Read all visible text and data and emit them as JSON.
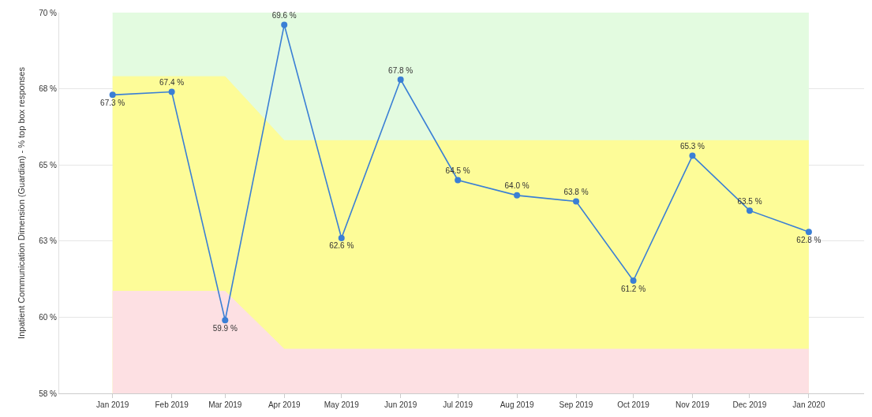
{
  "chart_data": {
    "type": "line",
    "ylabel": "Inpatient Communication Dimension (Guardian) - % top box responses",
    "x": [
      "2019-01",
      "2019-02",
      "2019-03",
      "2019-04",
      "2019-05",
      "2019-06",
      "2019-07",
      "2019-08",
      "2019-09",
      "2019-10",
      "2019-11",
      "2019-12",
      "2020-01"
    ],
    "series": [
      {
        "type": "area",
        "color": "#e3fbe0",
        "values": [
          70,
          70,
          70,
          70,
          70,
          70,
          70,
          70,
          70,
          70,
          70,
          70,
          70
        ]
      },
      {
        "type": "area",
        "color": "#fdfc98",
        "values": [
          67.9,
          67.9,
          67.9,
          65.8,
          65.8,
          65.8,
          65.8,
          65.8,
          65.8,
          65.8,
          65.8,
          65.8,
          65.8
        ]
      },
      {
        "type": "area",
        "color": "#fde0e3",
        "values": [
          60.85,
          60.85,
          60.85,
          58.95,
          58.95,
          58.95,
          58.95,
          58.95,
          58.95,
          58.95,
          58.95,
          58.95,
          58.95
        ]
      },
      {
        "color": "#3a7fd5",
        "marker": "circle",
        "values": [
          67.3,
          67.4,
          59.9,
          69.6,
          62.6,
          67.8,
          64.5,
          64.0,
          63.8,
          61.2,
          65.3,
          63.5,
          62.8
        ],
        "value_labels": [
          "67.3 %",
          "67.4 %",
          "59.9 %",
          "69.6 %",
          "62.6 %",
          "67.8 %",
          "64.5 %",
          "64.0 %",
          "63.8 %",
          "61.2 %",
          "65.3 %",
          "63.5 %",
          "62.8 %"
        ]
      }
    ],
    "xlim": [
      "2018-12-04",
      "2020-01-30"
    ],
    "xticks": [
      {
        "value": "2019-01",
        "label": "Jan 2019"
      },
      {
        "value": "2019-02",
        "label": "Feb 2019"
      },
      {
        "value": "2019-03",
        "label": "Mar 2019"
      },
      {
        "value": "2019-04",
        "label": "Apr 2019"
      },
      {
        "value": "2019-05",
        "label": "May 2019"
      },
      {
        "value": "2019-06",
        "label": "Jun 2019"
      },
      {
        "value": "2019-07",
        "label": "Jul 2019"
      },
      {
        "value": "2019-08",
        "label": "Aug 2019"
      },
      {
        "value": "2019-09",
        "label": "Sep 2019"
      },
      {
        "value": "2019-10",
        "label": "Oct 2019"
      },
      {
        "value": "2019-11",
        "label": "Nov 2019"
      },
      {
        "value": "2019-12",
        "label": "Dec 2019"
      },
      {
        "value": "2020-01",
        "label": "Jan 2020"
      }
    ],
    "ylim": [
      57.5,
      70
    ],
    "yticks": [
      {
        "value": 57.5,
        "label": "58 %"
      },
      {
        "value": 60,
        "label": "60 %"
      },
      {
        "value": 62.5,
        "label": "63 %"
      },
      {
        "value": 65,
        "label": "65 %"
      },
      {
        "value": 67.5,
        "label": "68 %"
      },
      {
        "value": 70,
        "label": "70 %"
      }
    ],
    "grid": "y"
  }
}
